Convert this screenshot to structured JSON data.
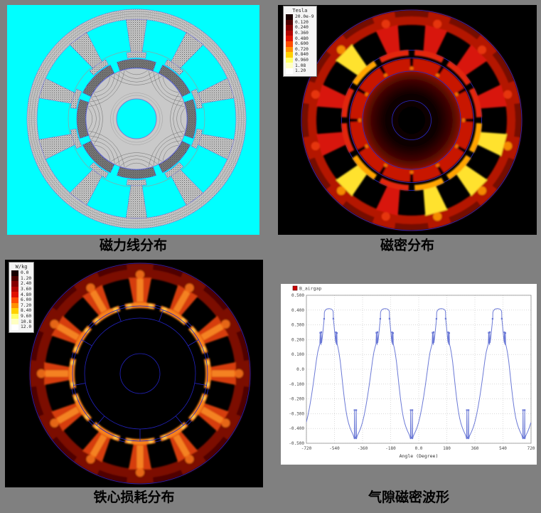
{
  "page": {
    "background": "#808080"
  },
  "panels": {
    "flux_lines": {
      "caption": "磁力线分布",
      "bg": "#00ffff"
    },
    "flux_density": {
      "caption": "磁密分布",
      "bg": "#000000"
    },
    "core_loss": {
      "caption": "铁心损耗分布",
      "bg": "#000000"
    },
    "airgap": {
      "caption": "气隙磁密波形",
      "bg": "#ffffff"
    }
  },
  "figures": {
    "flux_lines": {
      "stator_teeth": 10,
      "rotor_magnets": 8,
      "background": "#00ffff",
      "stator_color": "#c6c6c6",
      "rotor_color": "#c9c9c9",
      "magnet_color": "#9c9c9c",
      "outline_color": "#7b7bd0",
      "flux_line_color": "#5f5f5f"
    }
  },
  "chart_data": [
    {
      "id": "flux_density_map",
      "type": "heatmap",
      "panel": "flux_density",
      "colorbar": {
        "title": "Tesla",
        "tick_labels": [
          "20.0e-9",
          "0.120",
          "0.240",
          "0.360",
          "0.480",
          "0.600",
          "0.720",
          "0.840",
          "0.960",
          "1.08",
          "1.20"
        ],
        "colors": [
          "#190000",
          "#4f0000",
          "#850000",
          "#b30500",
          "#e01200",
          "#ff4d00",
          "#ff9100",
          "#ffd000",
          "#ffff66",
          "#ffffc2",
          "#ffffff"
        ]
      },
      "geometry": {
        "stator_teeth": 12,
        "teeth_offset_deg": 15,
        "rotor_gaps": 12,
        "rotor_gaps_offset_deg": 0,
        "high_flux_teeth_deg": [
          135,
          225,
          285,
          315,
          345
        ]
      },
      "palette": {
        "yoke": "#b41404",
        "yoke_dark": "#6d0a03",
        "tooth": "#d81808",
        "tooth_hot": "#ffe22e",
        "shoe": "#e22508",
        "shoe_hot": "#ffa400",
        "root_glow": "#ef3a0a",
        "root_glow_hot": "#ff9d00",
        "ring": "#c81504",
        "notch_glow": "#ff7200",
        "core_edge": "#8d0e03",
        "wire": "#2a2ac8"
      }
    },
    {
      "id": "core_loss_map",
      "type": "heatmap",
      "panel": "core_loss",
      "colorbar": {
        "title": "W/kg",
        "tick_labels": [
          "0.0",
          "1.20",
          "2.40",
          "3.60",
          "4.80",
          "6.00",
          "7.20",
          "8.40",
          "9.60",
          "10.8",
          "12.0"
        ],
        "colors": [
          "#190000",
          "#4f0000",
          "#850000",
          "#b30500",
          "#e01200",
          "#ff4d00",
          "#ff9100",
          "#ffd000",
          "#ffff66",
          "#ffffc2",
          "#ffffff"
        ]
      },
      "geometry": {
        "stator_teeth": 12,
        "teeth_offset_deg": 0,
        "rotor_magnet_segments": 9
      },
      "palette": {
        "yoke": "#7c0e05",
        "yoke_dark": "#4a0602",
        "tooth": "#d63c0a",
        "tooth_core": "#ff9a28",
        "shoe": "#f8821a",
        "root_glow": "#ff7d1c",
        "tip_glow": "#ffd34e",
        "wire": "#2323c0"
      }
    },
    {
      "id": "airgap_waveform",
      "type": "line",
      "panel": "airgap",
      "series": [
        {
          "name": "B_airgap",
          "color": "#6b79d6",
          "legend_swatch": "#cc0000"
        }
      ],
      "xlabel": "Angle (Degree)",
      "xlim": [
        -720,
        720
      ],
      "ylim": [
        -0.5,
        0.5
      ],
      "x_tick_values": [
        -720,
        -540,
        -360,
        -180,
        0,
        180,
        360,
        540,
        720
      ],
      "x_tick_labels": [
        "-720",
        "-540",
        "-360",
        "-180",
        "0.0",
        "180",
        "360",
        "540",
        "720"
      ],
      "y_tick_values": [
        0.5,
        0.4,
        0.3,
        0.2,
        0.1,
        0,
        -0.1,
        -0.2,
        -0.3,
        -0.4,
        -0.5
      ],
      "y_tick_labels": [
        "0.500",
        "0.400",
        "0.300",
        "0.200",
        "0.100",
        "0.0",
        "-0.100",
        "-0.200",
        "-0.300",
        "-0.400",
        "-0.500"
      ],
      "grid": "dotted",
      "legend_position": "top-left",
      "peak_value": 0.41,
      "trough_value": -0.475,
      "period_deg": 360,
      "peak_centers": [
        -575,
        -215,
        145,
        505
      ],
      "period_template": [
        [
          -190,
          -0.458
        ],
        [
          -187,
          -0.471
        ],
        [
          -185.5,
          -0.276,
          1
        ],
        [
          -184,
          -0.471
        ],
        [
          -180,
          -0.452
        ],
        [
          -173,
          -0.436
        ],
        [
          -165,
          -0.418
        ],
        [
          -156,
          -0.394
        ],
        [
          -146,
          -0.36
        ],
        [
          -135,
          -0.312
        ],
        [
          -124,
          -0.252
        ],
        [
          -113,
          -0.183
        ],
        [
          -102,
          -0.105
        ],
        [
          -91,
          -0.02
        ],
        [
          -81,
          0.06
        ],
        [
          -72,
          0.118
        ],
        [
          -64,
          0.152
        ],
        [
          -59,
          0.17
        ],
        [
          -56.5,
          0.247,
          1
        ],
        [
          -54,
          0.176
        ],
        [
          -51,
          0.17
        ],
        [
          -49.5,
          0.251,
          1
        ],
        [
          -47.5,
          0.178
        ],
        [
          -44,
          0.206
        ],
        [
          -40,
          0.246
        ],
        [
          -36,
          0.288
        ],
        [
          -33,
          0.32
        ],
        [
          -31.5,
          0.341,
          1
        ],
        [
          -30.6,
          0.346
        ],
        [
          -30,
          0.382
        ],
        [
          -26,
          0.396
        ],
        [
          -20,
          0.403
        ],
        [
          -12,
          0.408
        ],
        [
          0,
          0.41
        ],
        [
          8,
          0.409
        ],
        [
          16,
          0.406
        ],
        [
          22,
          0.4
        ],
        [
          26,
          0.393
        ],
        [
          27,
          0.38
        ],
        [
          27.6,
          0.342,
          1
        ],
        [
          29,
          0.329
        ],
        [
          32,
          0.299
        ],
        [
          36,
          0.254
        ],
        [
          40,
          0.209
        ],
        [
          43,
          0.181
        ],
        [
          44.5,
          0.25,
          1
        ],
        [
          46,
          0.174
        ],
        [
          49,
          0.169
        ],
        [
          50.5,
          0.245,
          1
        ],
        [
          52,
          0.171
        ],
        [
          57,
          0.15
        ],
        [
          64,
          0.112
        ],
        [
          72,
          0.054
        ],
        [
          81,
          -0.034
        ],
        [
          90,
          -0.124
        ],
        [
          99,
          -0.206
        ],
        [
          108,
          -0.275
        ],
        [
          117,
          -0.329
        ],
        [
          126,
          -0.367
        ],
        [
          135,
          -0.396
        ],
        [
          144,
          -0.419
        ],
        [
          152,
          -0.437
        ],
        [
          158,
          -0.453
        ],
        [
          162,
          -0.471
        ],
        [
          163.5,
          -0.276,
          1
        ],
        [
          165,
          -0.471
        ],
        [
          168,
          -0.461
        ],
        [
          170,
          -0.458
        ]
      ]
    }
  ]
}
